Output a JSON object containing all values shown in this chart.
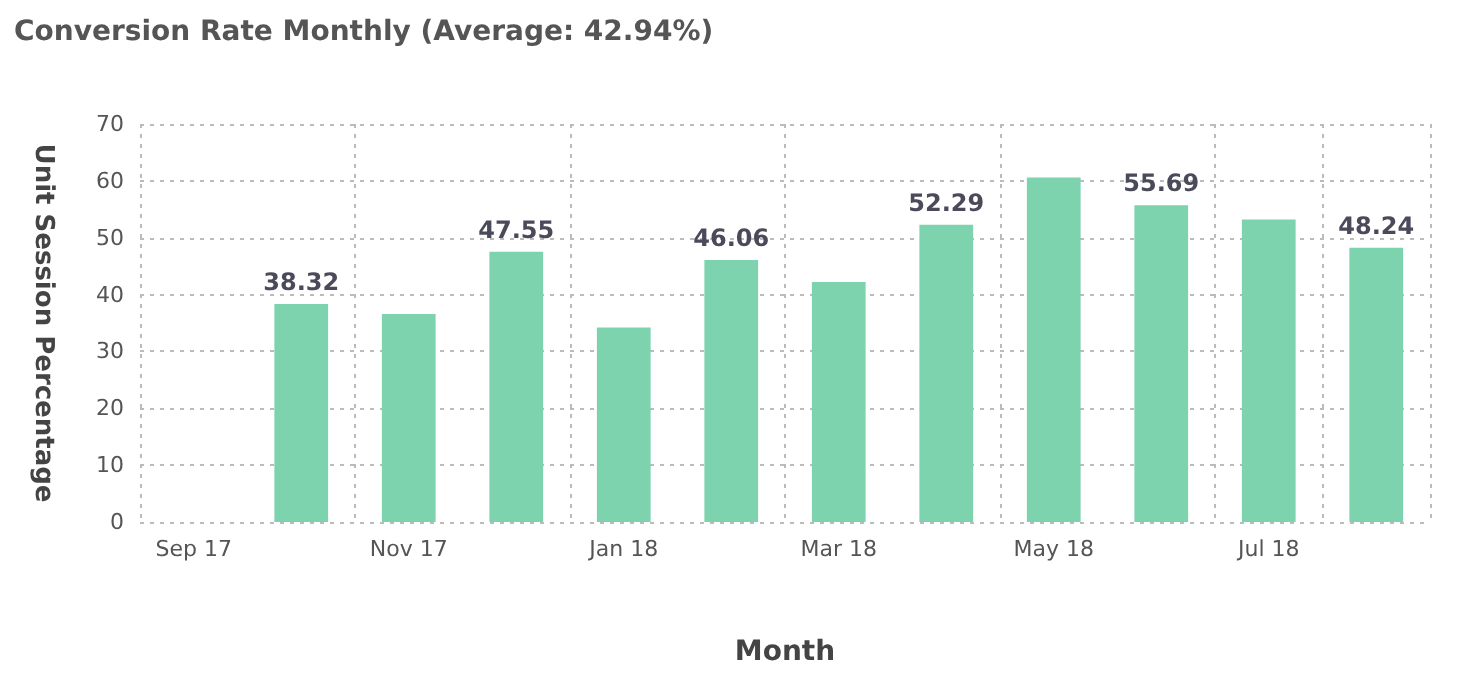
{
  "chart_data": {
    "type": "bar",
    "title": "Conversion Rate Monthly (Average: 42.94%)",
    "xlabel": "Month",
    "ylabel": "Unit Session Percentage",
    "categories": [
      "Sep 17",
      null,
      "Nov 17",
      null,
      "Jan 18",
      null,
      "Mar 18",
      null,
      "May 18",
      null,
      "Jul 18",
      null
    ],
    "values": [
      null,
      38.32,
      36.6,
      47.55,
      34.2,
      46.06,
      42.2,
      52.29,
      60.6,
      55.69,
      53.2,
      48.24
    ],
    "value_labels": [
      null,
      "38.32",
      null,
      "47.55",
      null,
      "46.06",
      null,
      "52.29",
      null,
      "55.69",
      null,
      "48.24"
    ],
    "color": "#7dd3ae",
    "ylim": [
      0,
      70
    ],
    "yticks": [
      0,
      10,
      20,
      30,
      40,
      50,
      60,
      70
    ],
    "grid": true
  }
}
